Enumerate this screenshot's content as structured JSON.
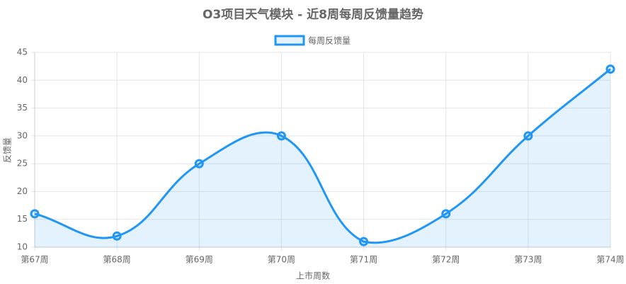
{
  "chart_data": {
    "type": "line",
    "title": "O3项目天气模块 - 近8周每周反馈量趋势",
    "x_label": "上市周数",
    "y_label": "反馈量",
    "categories": [
      "第67周",
      "第68周",
      "第69周",
      "第70周",
      "第71周",
      "第72周",
      "第73周",
      "第74周"
    ],
    "series": [
      {
        "name": "每周反馈量",
        "color": "#2196f3",
        "fill": "rgba(33,150,243,0.12)",
        "values": [
          16,
          12,
          25,
          30,
          11,
          16,
          30,
          42
        ]
      }
    ],
    "ylim": [
      10,
      45
    ],
    "yticks": [
      10,
      15,
      20,
      25,
      30,
      35,
      40,
      45
    ],
    "grid": true
  }
}
